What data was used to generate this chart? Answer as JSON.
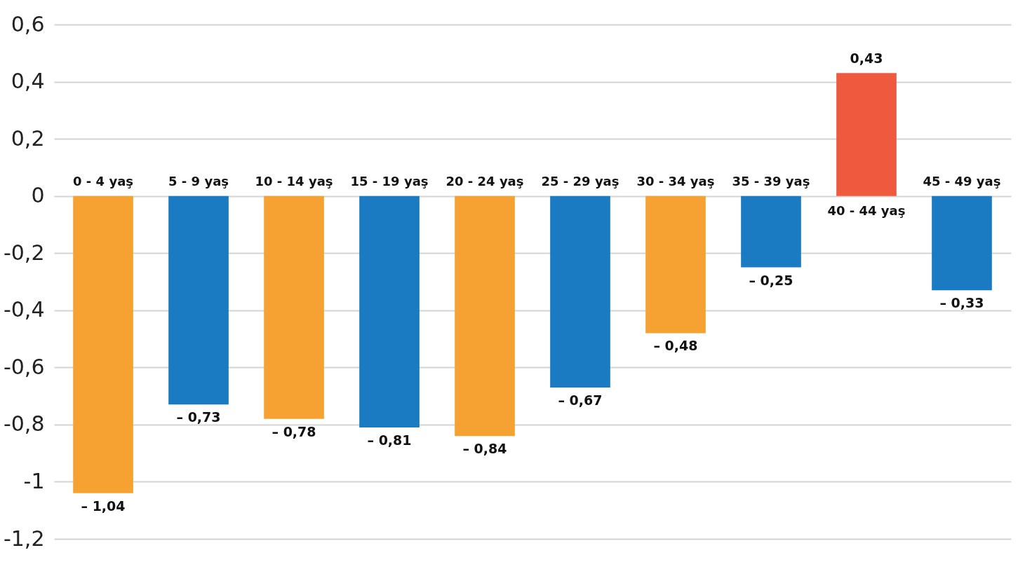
{
  "chart_data": {
    "type": "bar",
    "categories": [
      "0 - 4 yaş",
      "5 - 9 yaş",
      "10 - 14 yaş",
      "15 - 19 yaş",
      "20 - 24 yaş",
      "25 - 29 yaş",
      "30 - 34 yaş",
      "35 - 39 yaş",
      "40 - 44 yaş",
      "45 - 49 yaş"
    ],
    "values": [
      -1.04,
      -0.73,
      -0.78,
      -0.81,
      -0.84,
      -0.67,
      -0.48,
      -0.25,
      0.43,
      -0.33
    ],
    "colors": [
      "#f6a232",
      "#1a7bc3",
      "#f6a232",
      "#1a7bc3",
      "#f6a232",
      "#1a7bc3",
      "#f6a232",
      "#1a7bc3",
      "#ef5a3e",
      "#1a7bc3"
    ],
    "value_labels": [
      "– 1,04",
      "– 0,73",
      "– 0,78",
      "– 0,81",
      "– 0,84",
      "– 0,67",
      "– 0,48",
      "– 0,25",
      "0,43",
      "– 0,33"
    ],
    "ylim": [
      -1.2,
      0.6
    ],
    "yticks": [
      {
        "value": 0.6,
        "label": "0,6"
      },
      {
        "value": 0.4,
        "label": "0,4"
      },
      {
        "value": 0.2,
        "label": "0,2"
      },
      0,
      {
        "value": -0.2,
        "label": "-0,2"
      },
      {
        "value": -0.4,
        "label": "-0,4"
      },
      {
        "value": -0.6,
        "label": "-0,6"
      },
      {
        "value": -0.8,
        "label": "-0,8"
      },
      -1,
      {
        "value": -1.2,
        "label": "-1,2"
      }
    ],
    "grid": "y"
  }
}
